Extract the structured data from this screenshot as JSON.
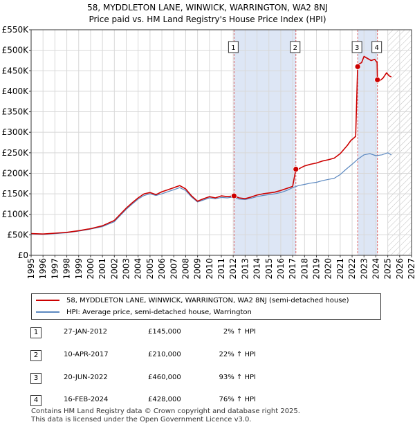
{
  "title_line1": "58, MYDDLETON LANE, WINWICK, WARRINGTON, WA2 8NJ",
  "title_line2": "Price paid vs. HM Land Registry's House Price Index (HPI)",
  "chart_data": {
    "type": "line",
    "xlim": [
      1995,
      2027
    ],
    "ylim": [
      0,
      550000
    ],
    "yticks": [
      0,
      50000,
      100000,
      150000,
      200000,
      250000,
      300000,
      350000,
      400000,
      450000,
      500000,
      550000
    ],
    "ytick_labels": [
      "£0",
      "£50K",
      "£100K",
      "£150K",
      "£200K",
      "£250K",
      "£300K",
      "£350K",
      "£400K",
      "£450K",
      "£500K",
      "£550K"
    ],
    "xticks": [
      1995,
      1996,
      1997,
      1998,
      1999,
      2000,
      2001,
      2002,
      2003,
      2004,
      2005,
      2006,
      2007,
      2008,
      2009,
      2010,
      2011,
      2012,
      2013,
      2014,
      2015,
      2016,
      2017,
      2018,
      2019,
      2020,
      2021,
      2022,
      2023,
      2024,
      2025,
      2026,
      2027
    ],
    "forecast_start": 2025.0,
    "grid": true,
    "colors": {
      "property": "#cc0000",
      "hpi": "#5b88c0",
      "shade": "#dde6f5",
      "vline": "#e06666"
    },
    "series": [
      {
        "name": "58, MYDDLETON LANE, WINWICK, WARRINGTON, WA2 8NJ (semi-detached house)",
        "color": "#cc0000",
        "x": [
          1995.0,
          1996.0,
          1997.0,
          1998.0,
          1999.0,
          2000.0,
          2001.0,
          2002.0,
          2002.5,
          2003.0,
          2003.5,
          2004.0,
          2004.5,
          2005.0,
          2005.5,
          2006.0,
          2006.5,
          2007.0,
          2007.5,
          2008.0,
          2008.5,
          2009.0,
          2009.5,
          2010.0,
          2010.5,
          2011.0,
          2011.5,
          2012.07,
          2012.5,
          2013.0,
          2013.5,
          2014.0,
          2014.5,
          2015.0,
          2015.5,
          2016.0,
          2016.5,
          2017.0,
          2017.27,
          2017.3,
          2017.6,
          2018.0,
          2018.5,
          2019.0,
          2019.5,
          2020.0,
          2020.5,
          2021.0,
          2021.3,
          2021.6,
          2021.9,
          2022.1,
          2022.3,
          2022.47,
          2022.5,
          2022.8,
          2023.0,
          2023.3,
          2023.6,
          2023.9,
          2024.1,
          2024.13,
          2024.3,
          2024.6,
          2024.9,
          2025.1,
          2025.3
        ],
        "y": [
          53000,
          52000,
          54000,
          56000,
          60000,
          65000,
          72000,
          85000,
          100000,
          115000,
          128000,
          140000,
          150000,
          153000,
          148000,
          155000,
          160000,
          165000,
          170000,
          162000,
          145000,
          132000,
          138000,
          143000,
          140000,
          145000,
          143000,
          145000,
          140000,
          138000,
          142000,
          147000,
          150000,
          152000,
          154000,
          158000,
          163000,
          168000,
          210000,
          206000,
          212000,
          218000,
          222000,
          225000,
          230000,
          233000,
          237000,
          248000,
          258000,
          268000,
          280000,
          285000,
          290000,
          460000,
          465000,
          470000,
          485000,
          480000,
          475000,
          478000,
          470000,
          428000,
          425000,
          432000,
          445000,
          438000,
          435000
        ]
      },
      {
        "name": "HPI: Average price, semi-detached house, Warrington",
        "color": "#5b88c0",
        "x": [
          1995.0,
          1996.0,
          1997.0,
          1998.0,
          1999.0,
          2000.0,
          2001.0,
          2002.0,
          2002.5,
          2003.0,
          2003.5,
          2004.0,
          2004.5,
          2005.0,
          2005.5,
          2006.0,
          2006.5,
          2007.0,
          2007.5,
          2008.0,
          2008.5,
          2009.0,
          2009.5,
          2010.0,
          2010.5,
          2011.0,
          2011.5,
          2012.0,
          2012.5,
          2013.0,
          2013.5,
          2014.0,
          2014.5,
          2015.0,
          2015.5,
          2016.0,
          2016.5,
          2017.0,
          2017.5,
          2018.0,
          2018.5,
          2019.0,
          2019.5,
          2020.0,
          2020.5,
          2021.0,
          2021.5,
          2022.0,
          2022.5,
          2023.0,
          2023.5,
          2024.0,
          2024.5,
          2025.0,
          2025.3
        ],
        "y": [
          52000,
          51000,
          53000,
          55000,
          59000,
          64000,
          70000,
          82000,
          97000,
          112000,
          125000,
          137000,
          146000,
          150000,
          146000,
          150000,
          155000,
          160000,
          165000,
          158000,
          142000,
          130000,
          135000,
          140000,
          138000,
          141000,
          140000,
          142000,
          137000,
          136000,
          139000,
          143000,
          146000,
          148000,
          150000,
          153000,
          158000,
          165000,
          170000,
          173000,
          176000,
          178000,
          182000,
          185000,
          188000,
          197000,
          210000,
          222000,
          235000,
          245000,
          248000,
          243000,
          245000,
          250000,
          245000
        ]
      }
    ],
    "sales": [
      {
        "num": "1",
        "x": 2012.07,
        "y": 145000
      },
      {
        "num": "2",
        "x": 2017.27,
        "y": 210000
      },
      {
        "num": "3",
        "x": 2022.47,
        "y": 460000
      },
      {
        "num": "4",
        "x": 2024.13,
        "y": 428000
      }
    ]
  },
  "legend": {
    "property_label": "58, MYDDLETON LANE, WINWICK, WARRINGTON, WA2 8NJ (semi-detached house)",
    "hpi_label": "HPI: Average price, semi-detached house, Warrington"
  },
  "sales_table": [
    {
      "num": "1",
      "date": "27-JAN-2012",
      "price": "£145,000",
      "hpi": "2% ↑ HPI"
    },
    {
      "num": "2",
      "date": "10-APR-2017",
      "price": "£210,000",
      "hpi": "22% ↑ HPI"
    },
    {
      "num": "3",
      "date": "20-JUN-2022",
      "price": "£460,000",
      "hpi": "93% ↑ HPI"
    },
    {
      "num": "4",
      "date": "16-FEB-2024",
      "price": "£428,000",
      "hpi": "76% ↑ HPI"
    }
  ],
  "footer": {
    "line1": "Contains HM Land Registry data © Crown copyright and database right 2025.",
    "line2": "This data is licensed under the Open Government Licence v3.0."
  }
}
